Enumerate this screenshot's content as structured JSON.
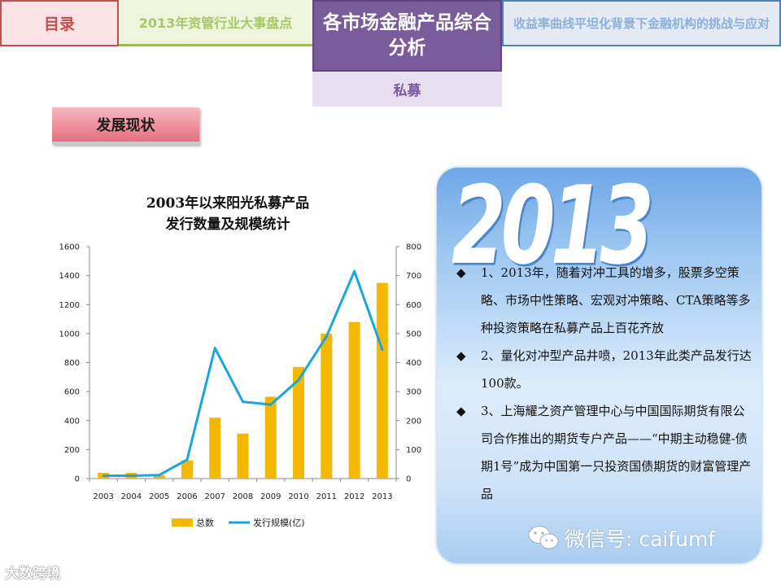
{
  "tabs": {
    "toc": "目录",
    "events": "2013年资管行业大事盘点",
    "analysis": "各市场金融产品综合分析",
    "yield": "收益率曲线平坦化背景下金融机构的挑战与应对"
  },
  "subtab": "私募",
  "section_label": "发展现状",
  "chart_title_lines": [
    "2003年以来阳光私募产品",
    "发行数量及规模统计"
  ],
  "colors": {
    "bar": "#f5b800",
    "line": "#1aa5dd"
  },
  "chart_data": {
    "type": "bar+line",
    "title": "2003年以来阳光私募产品 发行数量及规模统计",
    "categories": [
      "2003",
      "2004",
      "2005",
      "2006",
      "2007",
      "2008",
      "2009",
      "2010",
      "2011",
      "2012",
      "2013"
    ],
    "series": [
      {
        "name": "总数",
        "type": "bar",
        "axis": "left",
        "values": [
          40,
          40,
          25,
          125,
          420,
          310,
          565,
          770,
          1000,
          1080,
          1350
        ]
      },
      {
        "name": "发行规模(亿)",
        "type": "line",
        "axis": "right",
        "values": [
          10,
          10,
          12,
          65,
          450,
          265,
          255,
          340,
          490,
          715,
          445
        ]
      }
    ],
    "left_axis": {
      "min": 0,
      "max": 1600,
      "ticks": [
        0,
        200,
        400,
        600,
        800,
        1000,
        1200,
        1400,
        1600
      ]
    },
    "right_axis": {
      "min": 0,
      "max": 800,
      "ticks": [
        0,
        100,
        200,
        300,
        400,
        500,
        600,
        700,
        800
      ]
    },
    "legend_position": "bottom",
    "grid": false
  },
  "panel": {
    "year": "2013",
    "bullet_marker": "◆",
    "bullets": [
      "1、2013年，随着对冲工具的增多，股票多空策略、市场中性策略、宏观对冲策略、CTA策略等多种投资策略在私募产品上百花齐放",
      "2、量化对冲型产品井喷，2013年此类产品发行达100款。",
      "3、上海耀之资产管理中心与中国国际期货有限公司合作推出的期货专户产品——“中期主动稳健-债期1号”成为中国第一只投资国债期货的财富管理产品"
    ]
  },
  "watermarks": {
    "wechat": "微信号: caifumf",
    "brand": "大数跨境"
  }
}
